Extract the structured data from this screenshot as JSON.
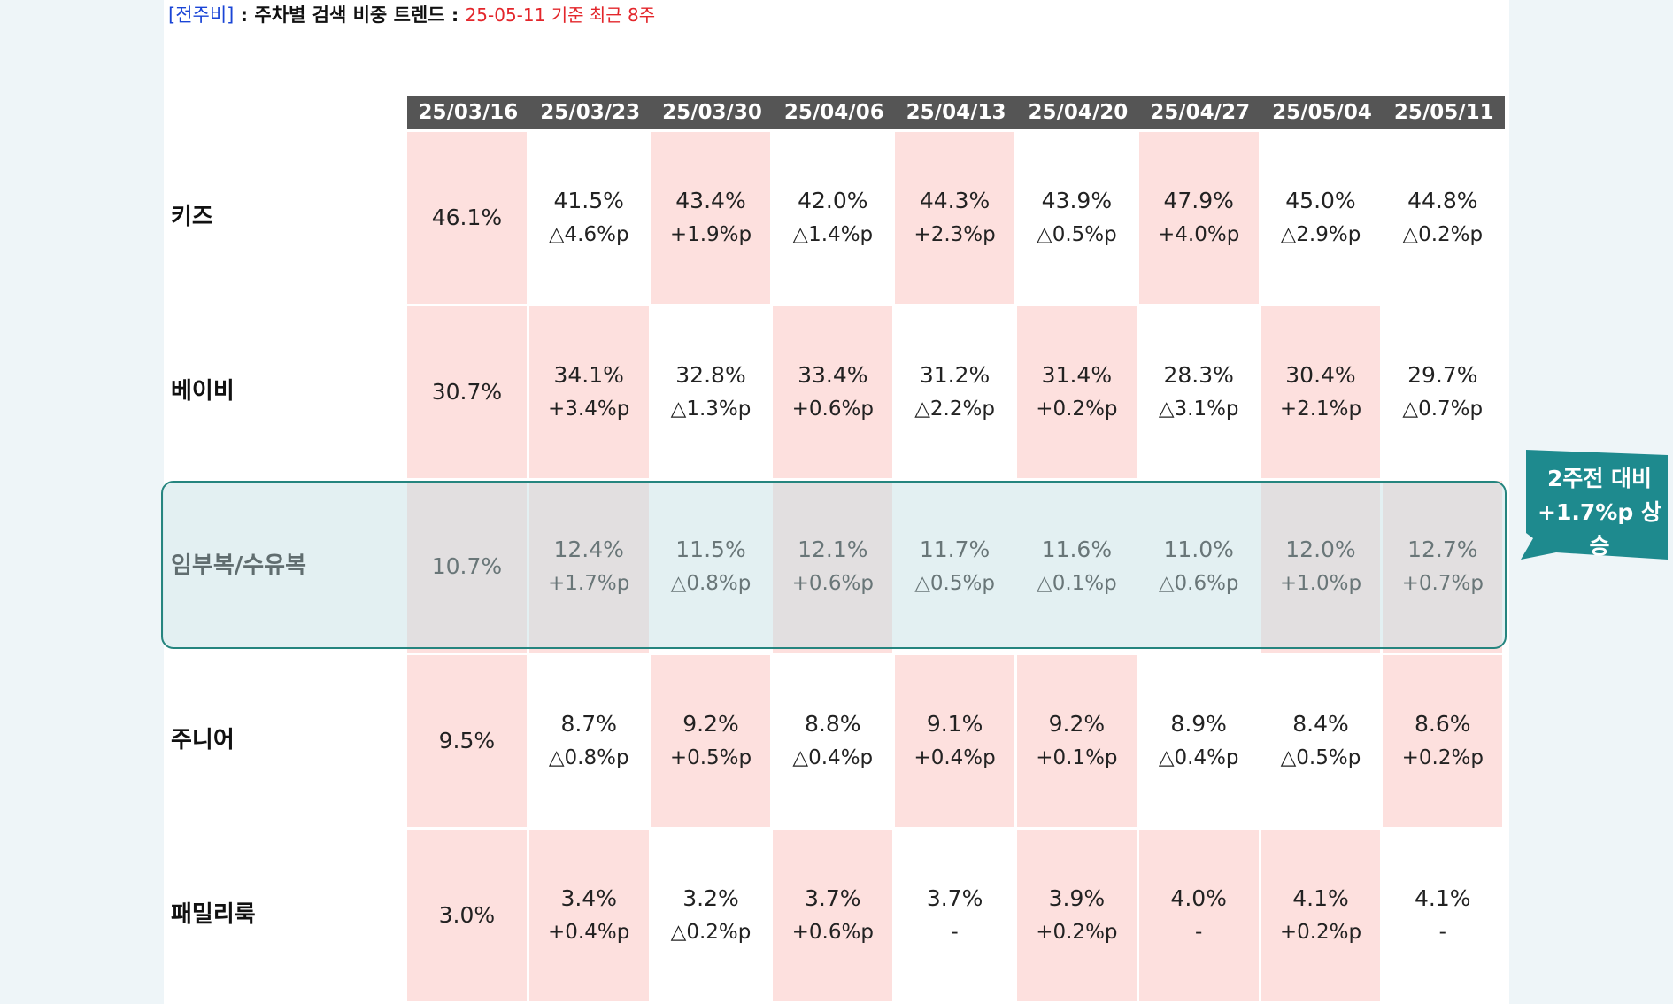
{
  "header": {
    "tag": "[전주비]",
    "sep1": " : ",
    "title": "주차별 검색 비중 트렌드",
    "sep2": " : ",
    "note": "25-05-11 기준 최근 8주"
  },
  "dates": [
    "25/03/16",
    "25/03/23",
    "25/03/30",
    "25/04/06",
    "25/04/13",
    "25/04/20",
    "25/04/27",
    "25/05/04",
    "25/05/11"
  ],
  "rows": [
    {
      "label": "키즈",
      "cells": [
        {
          "val": "46.1%",
          "chg": "",
          "hl": true
        },
        {
          "val": "41.5%",
          "chg": "△4.6%p",
          "hl": false
        },
        {
          "val": "43.4%",
          "chg": "+1.9%p",
          "hl": true
        },
        {
          "val": "42.0%",
          "chg": "△1.4%p",
          "hl": false
        },
        {
          "val": "44.3%",
          "chg": "+2.3%p",
          "hl": true
        },
        {
          "val": "43.9%",
          "chg": "△0.5%p",
          "hl": false
        },
        {
          "val": "47.9%",
          "chg": "+4.0%p",
          "hl": true
        },
        {
          "val": "45.0%",
          "chg": "△2.9%p",
          "hl": false
        },
        {
          "val": "44.8%",
          "chg": "△0.2%p",
          "hl": false
        }
      ]
    },
    {
      "label": "베이비",
      "cells": [
        {
          "val": "30.7%",
          "chg": "",
          "hl": true
        },
        {
          "val": "34.1%",
          "chg": "+3.4%p",
          "hl": true
        },
        {
          "val": "32.8%",
          "chg": "△1.3%p",
          "hl": false
        },
        {
          "val": "33.4%",
          "chg": "+0.6%p",
          "hl": true
        },
        {
          "val": "31.2%",
          "chg": "△2.2%p",
          "hl": false
        },
        {
          "val": "31.4%",
          "chg": "+0.2%p",
          "hl": true
        },
        {
          "val": "28.3%",
          "chg": "△3.1%p",
          "hl": false
        },
        {
          "val": "30.4%",
          "chg": "+2.1%p",
          "hl": true
        },
        {
          "val": "29.7%",
          "chg": "△0.7%p",
          "hl": false
        }
      ]
    },
    {
      "label": "임부복/수유복",
      "cells": [
        {
          "val": "10.7%",
          "chg": "",
          "hl": true
        },
        {
          "val": "12.4%",
          "chg": "+1.7%p",
          "hl": true
        },
        {
          "val": "11.5%",
          "chg": "△0.8%p",
          "hl": false
        },
        {
          "val": "12.1%",
          "chg": "+0.6%p",
          "hl": true
        },
        {
          "val": "11.7%",
          "chg": "△0.5%p",
          "hl": false
        },
        {
          "val": "11.6%",
          "chg": "△0.1%p",
          "hl": false
        },
        {
          "val": "11.0%",
          "chg": "△0.6%p",
          "hl": false
        },
        {
          "val": "12.0%",
          "chg": "+1.0%p",
          "hl": true
        },
        {
          "val": "12.7%",
          "chg": "+0.7%p",
          "hl": true
        }
      ]
    },
    {
      "label": "주니어",
      "cells": [
        {
          "val": "9.5%",
          "chg": "",
          "hl": true
        },
        {
          "val": "8.7%",
          "chg": "△0.8%p",
          "hl": false
        },
        {
          "val": "9.2%",
          "chg": "+0.5%p",
          "hl": true
        },
        {
          "val": "8.8%",
          "chg": "△0.4%p",
          "hl": false
        },
        {
          "val": "9.1%",
          "chg": "+0.4%p",
          "hl": true
        },
        {
          "val": "9.2%",
          "chg": "+0.1%p",
          "hl": true
        },
        {
          "val": "8.9%",
          "chg": "△0.4%p",
          "hl": false
        },
        {
          "val": "8.4%",
          "chg": "△0.5%p",
          "hl": false
        },
        {
          "val": "8.6%",
          "chg": "+0.2%p",
          "hl": true
        }
      ]
    },
    {
      "label": "패밀리룩",
      "cells": [
        {
          "val": "3.0%",
          "chg": "",
          "hl": true
        },
        {
          "val": "3.4%",
          "chg": "+0.4%p",
          "hl": true
        },
        {
          "val": "3.2%",
          "chg": "△0.2%p",
          "hl": false
        },
        {
          "val": "3.7%",
          "chg": "+0.6%p",
          "hl": true
        },
        {
          "val": "3.7%",
          "chg": "-",
          "hl": false
        },
        {
          "val": "3.9%",
          "chg": "+0.2%p",
          "hl": true
        },
        {
          "val": "4.0%",
          "chg": "-",
          "hl": true
        },
        {
          "val": "4.1%",
          "chg": "+0.2%p",
          "hl": true
        },
        {
          "val": "4.1%",
          "chg": "-",
          "hl": false
        }
      ]
    }
  ],
  "callout": {
    "line1": "2주전 대비",
    "line2": "+1.7%p 상승",
    "color": "#1e8a8e"
  },
  "colors": {
    "highlight_cell": "#fde0de",
    "date_header_bg": "#555555",
    "highlight_border": "#25857f"
  }
}
